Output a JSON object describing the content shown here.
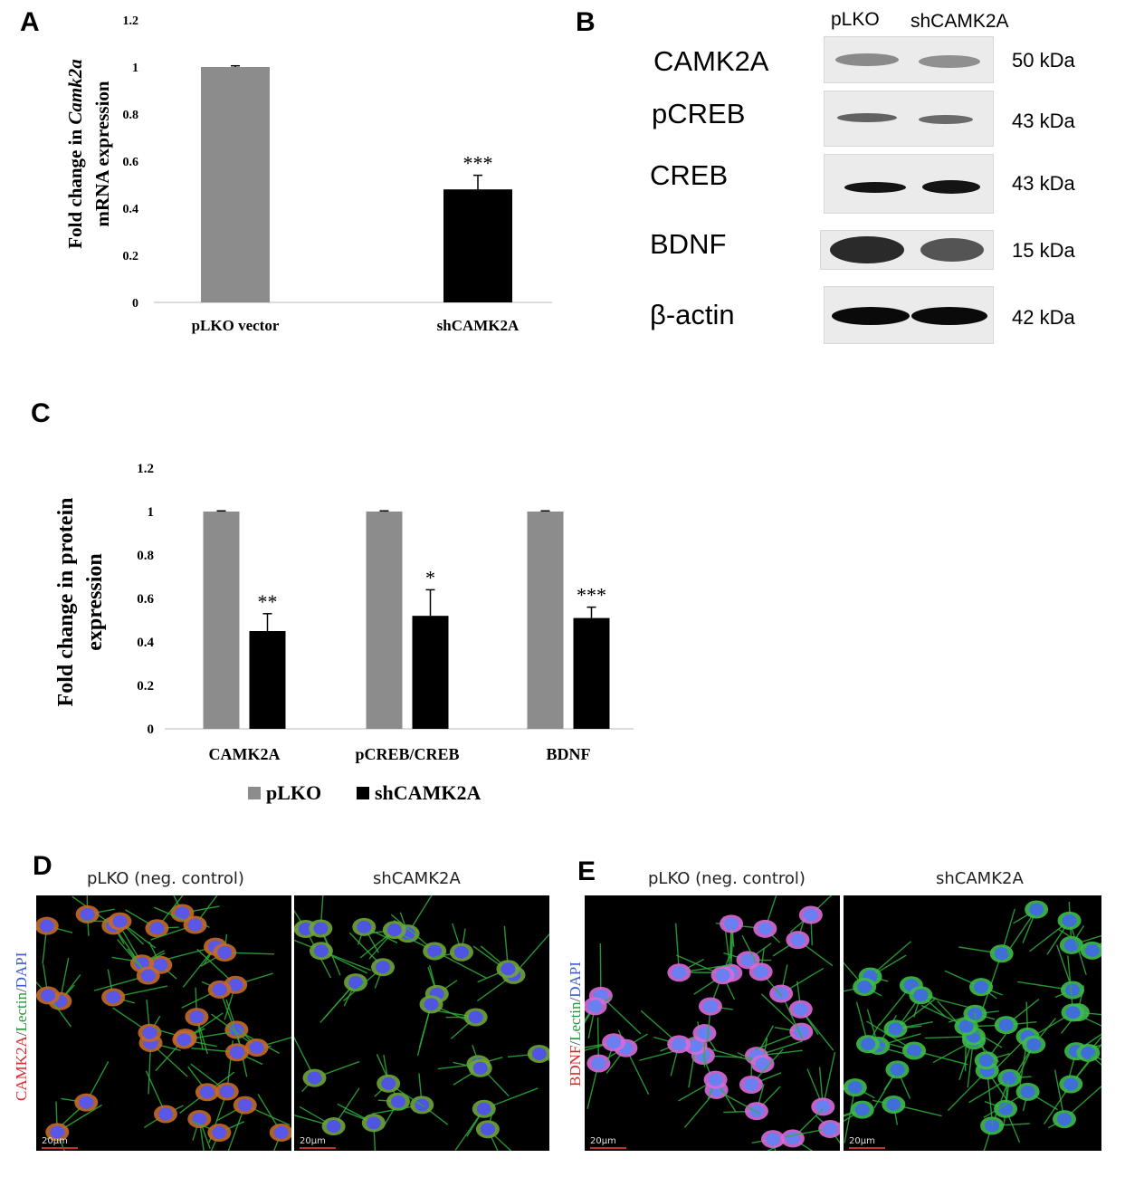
{
  "panels": {
    "A": "A",
    "B": "B",
    "C": "C",
    "D": "D",
    "E": "E"
  },
  "chart_data": [
    {
      "type": "bar",
      "panel": "A",
      "categories": [
        "pLKO vector",
        "shCAMK2A"
      ],
      "values": [
        1.0,
        0.48
      ],
      "errors": [
        0.005,
        0.06
      ],
      "bar_colors": [
        "#8c8c8c",
        "#000000"
      ],
      "significance": [
        "",
        "***"
      ],
      "ylabel_parts": [
        "Fold change in ",
        "Camk2a",
        " mRNA expression"
      ],
      "yticks": [
        "0",
        "0.2",
        "0.4",
        "0.6",
        "0.8",
        "1",
        "1.2"
      ],
      "ylim": [
        0,
        1.2
      ],
      "grid": false
    },
    {
      "type": "bar",
      "panel": "C",
      "categories": [
        "CAMK2A",
        "pCREB/CREB",
        "BDNF"
      ],
      "series": [
        {
          "name": "pLKO",
          "color": "#8c8c8c",
          "values": [
            1.0,
            1.0,
            1.0
          ],
          "errors": [
            0.003,
            0.003,
            0.003
          ],
          "significance": [
            "",
            "",
            ""
          ]
        },
        {
          "name": "shCAMK2A",
          "color": "#000000",
          "values": [
            0.45,
            0.52,
            0.51
          ],
          "errors": [
            0.08,
            0.12,
            0.05
          ],
          "significance": [
            "**",
            "*",
            "***"
          ]
        }
      ],
      "ylabel_line1": "Fold change in protein",
      "ylabel_line2": "expression",
      "yticks": [
        "0",
        "0.2",
        "0.4",
        "0.6",
        "0.8",
        "1",
        "1.2"
      ],
      "ylim": [
        0,
        1.2
      ],
      "legend_position": "bottom",
      "grid": false
    }
  ],
  "western_blot": {
    "lanes": [
      "pLKO",
      "shCAMK2A"
    ],
    "rows": [
      {
        "protein": "CAMK2A",
        "kda": "50 kDa"
      },
      {
        "protein": "pCREB",
        "kda": "43 kDa"
      },
      {
        "protein": "CREB",
        "kda": "43 kDa"
      },
      {
        "protein": "BDNF",
        "kda": "15 kDa"
      },
      {
        "protein": "β-actin",
        "kda": "42 kDa"
      }
    ]
  },
  "microscopy": {
    "D": {
      "left_title": "pLKO (neg. control)",
      "right_title": "shCAMK2A",
      "stain_parts": [
        {
          "text": "CAMK2A",
          "color": "#d22b2b"
        },
        {
          "text": "/",
          "color": "#555555"
        },
        {
          "text": "Lectin",
          "color": "#1f9a3a"
        },
        {
          "text": "/",
          "color": "#555555"
        },
        {
          "text": "DAPI",
          "color": "#3b5cc9"
        }
      ],
      "scale": "20µm"
    },
    "E": {
      "left_title": "pLKO (neg. control)",
      "right_title": "shCAMK2A",
      "stain_parts": [
        {
          "text": "BDNF",
          "color": "#d22b2b"
        },
        {
          "text": "/",
          "color": "#555555"
        },
        {
          "text": "Lectin",
          "color": "#1f9a3a"
        },
        {
          "text": "/",
          "color": "#555555"
        },
        {
          "text": "DAPI",
          "color": "#3b5cc9"
        }
      ],
      "scale": "20µm"
    }
  }
}
